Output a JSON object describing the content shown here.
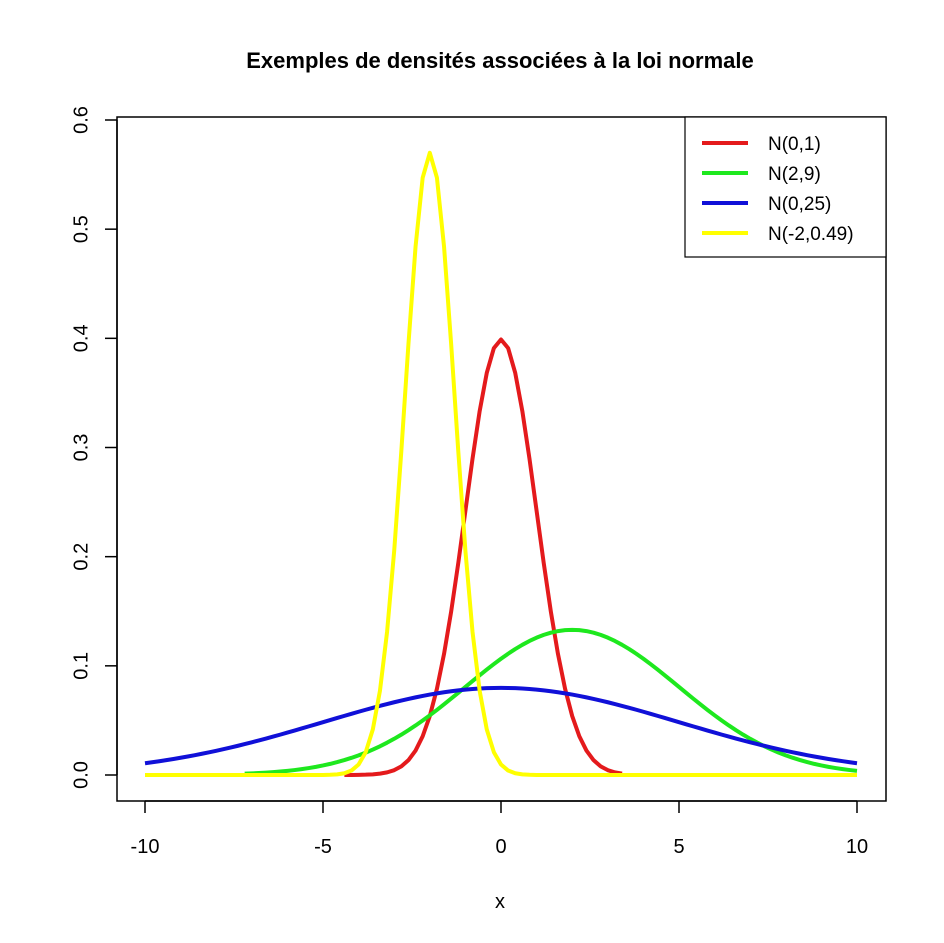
{
  "chart_data": {
    "type": "line",
    "title": "Exemples de densités associées à la loi normale",
    "xlabel": "x",
    "ylabel": "",
    "xlim": [
      -10,
      10
    ],
    "ylim": [
      0,
      0.6
    ],
    "x_ticks": [
      -10,
      -5,
      0,
      5,
      10
    ],
    "y_ticks": [
      0.0,
      0.1,
      0.2,
      0.3,
      0.4,
      0.5,
      0.6
    ],
    "x_tick_labels": [
      "-10",
      "-5",
      "0",
      "5",
      "10"
    ],
    "y_tick_labels": [
      "0.0",
      "0.1",
      "0.2",
      "0.3",
      "0.4",
      "0.5",
      "0.6"
    ],
    "legend_position": "top-right",
    "grid": false,
    "series": [
      {
        "name": "N(0,1)",
        "color": "#e41a1c",
        "mean": 0,
        "variance": 1,
        "x_range": [
          -4.5,
          3.5
        ]
      },
      {
        "name": "N(2,9)",
        "color": "#1ee81e",
        "mean": 2,
        "variance": 9,
        "x_range": [
          -7.3,
          10
        ]
      },
      {
        "name": "N(0,25)",
        "color": "#1010d8",
        "mean": 0,
        "variance": 25,
        "x_range": [
          -10,
          10
        ]
      },
      {
        "name": "N(-2,0.49)",
        "color": "#ffff00",
        "mean": -2,
        "variance": 0.49,
        "x_range": [
          -10,
          10
        ]
      }
    ]
  }
}
